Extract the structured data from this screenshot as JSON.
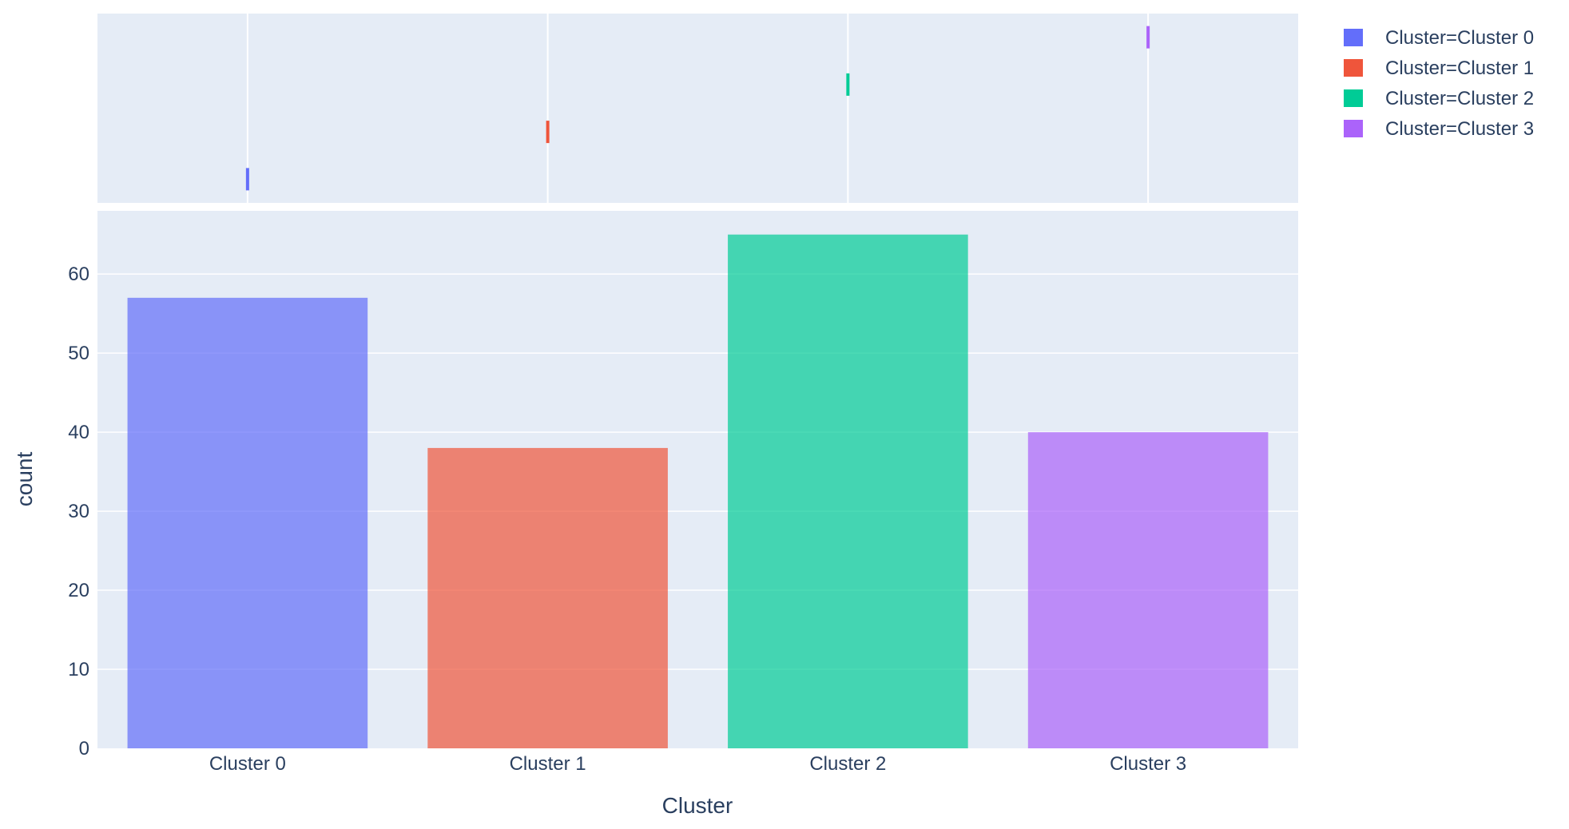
{
  "chart_data": {
    "type": "bar",
    "categories": [
      "Cluster 0",
      "Cluster 1",
      "Cluster 2",
      "Cluster 3"
    ],
    "values": [
      57,
      38,
      65,
      40
    ],
    "xlabel": "Cluster",
    "ylabel": "count",
    "ylim": [
      0,
      68
    ],
    "yticks": [
      0,
      10,
      20,
      30,
      40,
      50,
      60
    ],
    "grid": true,
    "legend_position": "top-right",
    "marginal": "rug",
    "series": [
      {
        "name": "Cluster=Cluster 0",
        "category": "Cluster 0",
        "value": 57,
        "color": "#636efa"
      },
      {
        "name": "Cluster=Cluster 1",
        "category": "Cluster 1",
        "value": 38,
        "color": "#ef553b"
      },
      {
        "name": "Cluster=Cluster 2",
        "category": "Cluster 2",
        "value": 65,
        "color": "#00cc96"
      },
      {
        "name": "Cluster=Cluster 3",
        "category": "Cluster 3",
        "value": 40,
        "color": "#ab63fa"
      }
    ],
    "colors": {
      "plot_background": "#e5ecf6",
      "grid": "#ffffff",
      "text": "#2a3f5f"
    }
  }
}
